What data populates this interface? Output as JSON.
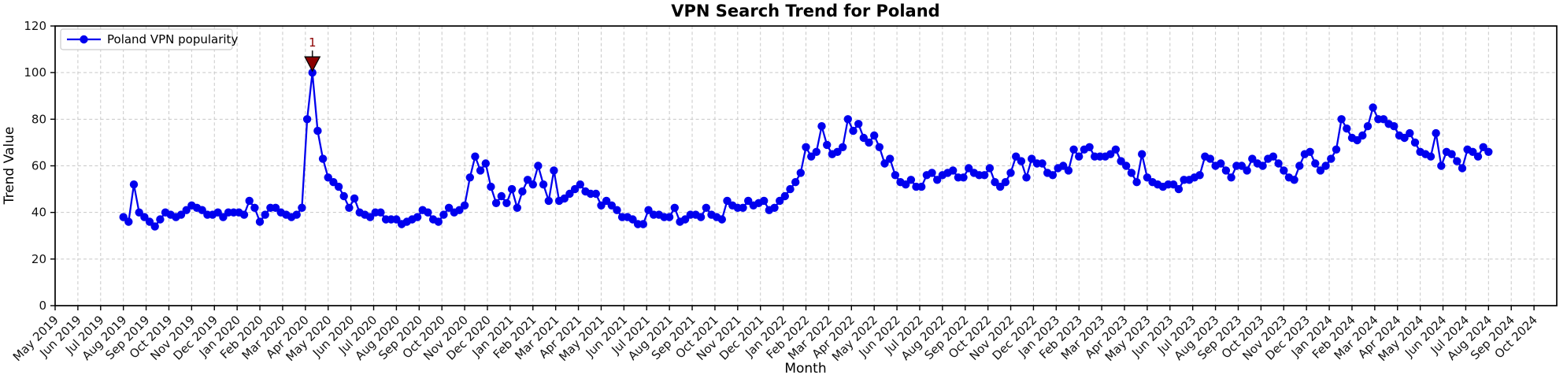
{
  "chart_data": {
    "type": "line",
    "title": "VPN Search Trend for Poland",
    "xlabel": "Month",
    "ylabel": "Trend Value",
    "ylim": [
      0,
      120
    ],
    "yticks": [
      0,
      20,
      40,
      60,
      80,
      100,
      120
    ],
    "x_axis_range_months": [
      0,
      66
    ],
    "grid": true,
    "x_axis_months": [
      "May 2019",
      "Jun 2019",
      "Jul 2019",
      "Aug 2019",
      "Sep 2019",
      "Oct 2019",
      "Nov 2019",
      "Dec 2019",
      "Jan 2020",
      "Feb 2020",
      "Mar 2020",
      "Apr 2020",
      "May 2020",
      "Jun 2020",
      "Jul 2020",
      "Aug 2020",
      "Sep 2020",
      "Oct 2020",
      "Nov 2020",
      "Dec 2020",
      "Jan 2021",
      "Feb 2021",
      "Mar 2021",
      "Apr 2021",
      "May 2021",
      "Jun 2021",
      "Jul 2021",
      "Aug 2021",
      "Sep 2021",
      "Oct 2021",
      "Nov 2021",
      "Dec 2021",
      "Jan 2022",
      "Feb 2022",
      "Mar 2022",
      "Apr 2022",
      "May 2022",
      "Jun 2022",
      "Jul 2022",
      "Aug 2022",
      "Sep 2022",
      "Oct 2022",
      "Nov 2022",
      "Dec 2022",
      "Jan 2023",
      "Feb 2023",
      "Mar 2023",
      "Apr 2023",
      "May 2023",
      "Jun 2023",
      "Jul 2023",
      "Aug 2023",
      "Sep 2023",
      "Oct 2023",
      "Nov 2023",
      "Dec 2023",
      "Jan 2024",
      "Feb 2024",
      "Mar 2024",
      "Apr 2024",
      "May 2024",
      "Jun 2024",
      "Jul 2024",
      "Aug 2024",
      "Sep 2024",
      "Oct 2024"
    ],
    "legend": {
      "label": "Poland VPN popularity",
      "position": "upper left"
    },
    "series": [
      {
        "name": "Poland VPN popularity",
        "color": "#0000ee",
        "marker": "circle",
        "cadence": "weekly",
        "first_point_month": "Aug 2019",
        "last_point_month": "Aug 2024",
        "start_month_offset": 3,
        "end_month_offset": 63,
        "values": [
          38,
          36,
          52,
          40,
          38,
          36,
          34,
          37,
          40,
          39,
          38,
          39,
          41,
          43,
          42,
          41,
          39,
          39,
          40,
          38,
          40,
          40,
          40,
          39,
          45,
          42,
          36,
          39,
          42,
          42,
          40,
          39,
          38,
          39,
          42,
          80,
          100,
          75,
          63,
          55,
          53,
          51,
          47,
          42,
          46,
          40,
          39,
          38,
          40,
          40,
          37,
          37,
          37,
          35,
          36,
          37,
          38,
          41,
          40,
          37,
          36,
          39,
          42,
          40,
          41,
          43,
          55,
          64,
          58,
          61,
          51,
          44,
          47,
          44,
          50,
          42,
          49,
          54,
          52,
          60,
          52,
          45,
          58,
          45,
          46,
          48,
          50,
          52,
          49,
          48,
          48,
          43,
          45,
          43,
          41,
          38,
          38,
          37,
          35,
          35,
          41,
          39,
          39,
          38,
          38,
          42,
          36,
          37,
          39,
          39,
          38,
          42,
          39,
          38,
          37,
          45,
          43,
          42,
          42,
          45,
          43,
          44,
          45,
          41,
          42,
          45,
          47,
          50,
          53,
          57,
          68,
          64,
          66,
          77,
          69,
          65,
          66,
          68,
          80,
          75,
          78,
          72,
          70,
          73,
          68,
          61,
          63,
          56,
          53,
          52,
          54,
          51,
          51,
          56,
          57,
          54,
          56,
          57,
          58,
          55,
          55,
          59,
          57,
          56,
          56,
          59,
          53,
          51,
          53,
          57,
          64,
          62,
          55,
          63,
          61,
          61,
          57,
          56,
          59,
          60,
          58,
          67,
          64,
          67,
          68,
          64,
          64,
          64,
          65,
          67,
          62,
          60,
          57,
          53,
          65,
          55,
          53,
          52,
          51,
          52,
          52,
          50,
          54,
          54,
          55,
          56,
          64,
          63,
          60,
          61,
          58,
          55,
          60,
          60,
          58,
          63,
          61,
          60,
          63,
          64,
          61,
          58,
          55,
          54,
          60,
          65,
          66,
          61,
          58,
          60,
          63,
          67,
          80,
          76,
          72,
          71,
          73,
          77,
          85,
          80,
          80,
          78,
          77,
          73,
          72,
          74,
          70,
          66,
          65,
          64,
          74,
          60,
          66,
          65,
          62,
          59,
          67,
          66,
          64,
          68,
          66
        ]
      }
    ],
    "annotation": {
      "label": "1",
      "color": "#8b0000",
      "marker": "triangle-down",
      "target": "series-maximum",
      "target_value": 100,
      "target_month": "Apr 2020"
    }
  },
  "layout_colors": {
    "background": "#ffffff",
    "grid": "#c8c8c8",
    "axis": "#000000",
    "legend_border": "#cccccc"
  }
}
